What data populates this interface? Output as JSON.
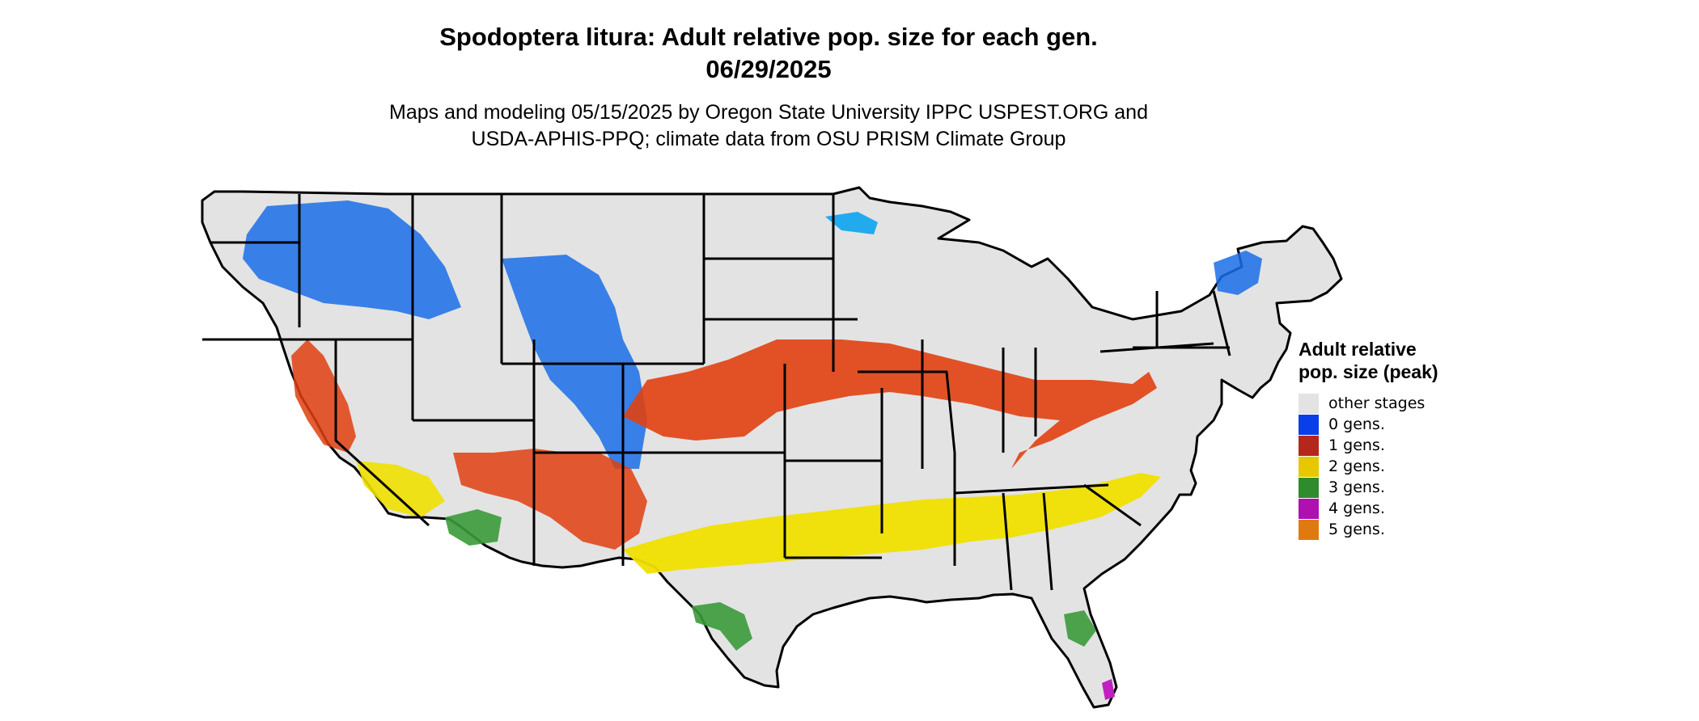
{
  "title": {
    "line1": "Spodoptera litura: Adult relative pop. size for each gen.",
    "line2": "06/29/2025"
  },
  "subtitle": {
    "line1": "Maps and modeling 05/15/2025 by Oregon State University IPPC USPEST.ORG and",
    "line2": "USDA-APHIS-PPQ; climate data from OSU PRISM Climate Group"
  },
  "legend": {
    "title": "Adult relative pop. size (peak)",
    "items": [
      {
        "label": "other stages",
        "color": "#e3e3e3"
      },
      {
        "label": "0 gens.",
        "color": "#0a3ee8"
      },
      {
        "label": "1 gens.",
        "color": "#b5261b"
      },
      {
        "label": "2 gens.",
        "color": "#e6c800"
      },
      {
        "label": "3 gens.",
        "color": "#2e8b2e"
      },
      {
        "label": "4 gens.",
        "color": "#b010b0"
      },
      {
        "label": "5 gens.",
        "color": "#e07a10"
      }
    ]
  },
  "map_colors": {
    "land": "#e3e3e3",
    "border": "#000000",
    "zero_gens": "#1a6ee8",
    "one_gen": "#e04010",
    "two_gens": "#f0e000",
    "three_gens": "#3a9a3a",
    "four_gens": "#c020c0",
    "water_blue": "#22aaee"
  }
}
